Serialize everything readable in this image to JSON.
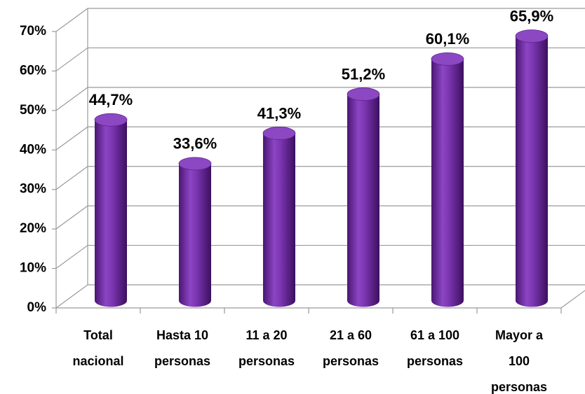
{
  "chart_data": {
    "type": "bar3d",
    "categories": [
      [
        "Total",
        "nacional"
      ],
      [
        "Hasta 10",
        "personas"
      ],
      [
        "11 a 20",
        "personas"
      ],
      [
        "21 a 60",
        "personas"
      ],
      [
        "61 a 100",
        "personas"
      ],
      [
        "Mayor a",
        "100",
        "personas"
      ]
    ],
    "values": [
      44.7,
      33.6,
      41.3,
      51.2,
      60.1,
      65.9
    ],
    "value_labels": [
      "44,7%",
      "33,6%",
      "41,3%",
      "51,2%",
      "60,1%",
      "65,9%"
    ],
    "color": "#7030a0",
    "ylim": [
      0,
      70
    ],
    "yticks": [
      {
        "value": 0,
        "label": "0%"
      },
      {
        "value": 10,
        "label": "10%"
      },
      {
        "value": 20,
        "label": "20%"
      },
      {
        "value": 30,
        "label": "30%"
      },
      {
        "value": 40,
        "label": "40%"
      },
      {
        "value": 50,
        "label": "50%"
      },
      {
        "value": 60,
        "label": "60%"
      },
      {
        "value": 70,
        "label": "70%"
      }
    ],
    "grid": true
  }
}
